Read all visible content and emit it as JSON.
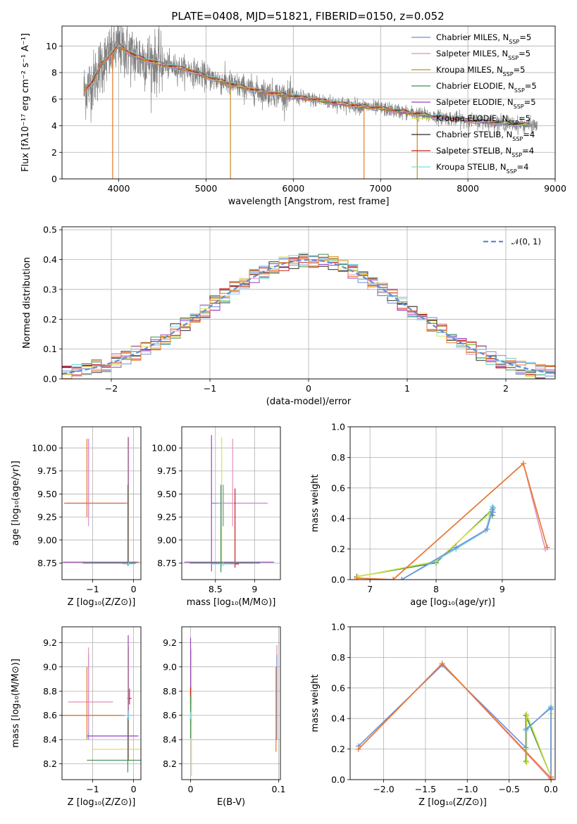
{
  "figure": {
    "title": "PLATE=0408, MJD=51821, FIBERID=0150, z=0.052"
  },
  "chart_data": [
    {
      "type": "line",
      "name": "spectrum",
      "xlabel": "wavelength [Angstrom, rest frame]",
      "ylabel": "Flux [fλ10⁻¹⁷ erg cm⁻² s⁻¹ A⁻¹]",
      "xlim": [
        3350,
        9000
      ],
      "ylim": [
        0,
        11.5
      ],
      "xticks": [
        4000,
        5000,
        6000,
        7000,
        8000,
        9000
      ],
      "yticks": [
        0,
        2,
        4,
        6,
        8,
        10
      ],
      "legend_position": "top-right",
      "legend": [
        {
          "label": "Chabrier MILES, N_SSP=5",
          "color": "#6f8fd8"
        },
        {
          "label": "Salpeter MILES, N_SSP=5",
          "color": "#e48fbf"
        },
        {
          "label": "Kroupa MILES, N_SSP=5",
          "color": "#c98a1e"
        },
        {
          "label": "Chabrier ELODIE, N_SSP=5",
          "color": "#3f8f56"
        },
        {
          "label": "Salpeter ELODIE, N_SSP=5",
          "color": "#9a3fc8"
        },
        {
          "label": "Kroupa ELODIE, N_SSP=5",
          "color": "#d7e24a"
        },
        {
          "label": "Chabrier STELIB, N_SSP=4",
          "color": "#2b2b2b"
        },
        {
          "label": "Salpeter STELIB, N_SSP=4",
          "color": "#c81e1e"
        },
        {
          "label": "Kroupa STELIB, N_SSP=4",
          "color": "#7fd6e0"
        }
      ],
      "data_color": "#808080",
      "model_color": "#e8782a",
      "continuum": {
        "x": [
          3600,
          3700,
          3800,
          4000,
          4200,
          4500,
          4800,
          5000,
          5300,
          5600,
          6000,
          6300,
          6600,
          7000,
          7300,
          7600,
          8000,
          8400,
          8800
        ],
        "y": [
          6.6,
          7.3,
          8.6,
          10.0,
          9.2,
          8.6,
          8.2,
          7.7,
          7.1,
          6.6,
          6.2,
          5.9,
          5.6,
          5.3,
          5.0,
          4.7,
          4.4,
          4.2,
          4.0
        ]
      },
      "dropouts": [
        3930,
        5280,
        6810,
        7420
      ]
    },
    {
      "type": "step",
      "name": "residual-histogram",
      "xlabel": "(data-model)/error",
      "ylabel": "Normed distribution",
      "xlim": [
        -2.5,
        2.5
      ],
      "ylim": [
        0,
        0.51
      ],
      "xticks": [
        -2,
        -1,
        0,
        1,
        2
      ],
      "yticks": [
        0.0,
        0.1,
        0.2,
        0.3,
        0.4,
        0.5
      ],
      "legend_position": "top-right",
      "legend": [
        {
          "label": "𝒩(0, 1)",
          "color": "#5b8fd8"
        }
      ],
      "bin_width": 0.1
    },
    {
      "type": "errorbar",
      "name": "age-vs-Z",
      "xlabel": "Z [log₁₀(Z/Z⊙)]",
      "ylabel": "age  [log₁₀(age/yr)]",
      "xlim": [
        -1.75,
        0.18
      ],
      "ylim": [
        8.57,
        10.23
      ],
      "xticks": [
        -1,
        0
      ],
      "yticks": [
        8.75,
        9.0,
        9.25,
        9.5,
        9.75,
        10.0
      ],
      "points": [
        {
          "x": -1.1,
          "y": 9.4,
          "xerr": [
            0.6,
            0.95
          ],
          "yerr": [
            0.15,
            0.7
          ],
          "color": "#6f8fd8"
        },
        {
          "x": -1.1,
          "y": 9.4,
          "xerr": [
            0.6,
            0.95
          ],
          "yerr": [
            0.25,
            0.7
          ],
          "color": "#e48fbf"
        },
        {
          "x": -1.14,
          "y": 9.4,
          "xerr": [
            0.55,
            0.95
          ],
          "yerr": [
            0.15,
            0.7
          ],
          "color": "#e8782a"
        },
        {
          "x": -0.12,
          "y": 8.76,
          "xerr": [
            1.6,
            0.3
          ],
          "yerr": [
            0.02,
            1.35
          ],
          "color": "#d7e24a"
        },
        {
          "x": -0.13,
          "y": 8.76,
          "xerr": [
            1.6,
            0.25
          ],
          "yerr": [
            0.02,
            1.36
          ],
          "color": "#9a3fc8"
        },
        {
          "x": -0.14,
          "y": 8.75,
          "xerr": [
            1.1,
            0.2
          ],
          "yerr": [
            0.03,
            0.85
          ],
          "color": "#3f8f56"
        },
        {
          "x": -0.12,
          "y": 8.74,
          "xerr": [
            0.15,
            0.15
          ],
          "yerr": [
            0.02,
            0.02
          ],
          "color": "#7fd6e0"
        }
      ]
    },
    {
      "type": "errorbar",
      "name": "age-vs-mass",
      "xlabel": "mass [log₁₀(M/M⊙)]",
      "ylabel": "",
      "xlim": [
        8.07,
        9.33
      ],
      "ylim": [
        8.57,
        10.23
      ],
      "xticks": [
        8.5,
        9.0
      ],
      "yticks": [
        8.75,
        9.0,
        9.25,
        9.5,
        9.75,
        10.0
      ],
      "points": [
        {
          "x": 8.6,
          "y": 9.4,
          "xerr": [
            0.15,
            0.55
          ],
          "yerr": [
            0.25,
            0.2
          ],
          "color": "#6f8fd8"
        },
        {
          "x": 8.72,
          "y": 9.4,
          "xerr": [
            0.2,
            0.45
          ],
          "yerr": [
            0.25,
            0.7
          ],
          "color": "#e48fbf"
        },
        {
          "x": 8.75,
          "y": 8.74,
          "xerr": [
            0.05,
            0.05
          ],
          "yerr": [
            0.04,
            0.82
          ],
          "color": "#c81e1e"
        },
        {
          "x": 8.58,
          "y": 8.76,
          "xerr": [
            0.45,
            0.65
          ],
          "yerr": [
            0.05,
            1.36
          ],
          "color": "#d7e24a"
        },
        {
          "x": 8.45,
          "y": 8.76,
          "xerr": [
            0.35,
            0.8
          ],
          "yerr": [
            0.1,
            1.38
          ],
          "color": "#9a3fc8"
        },
        {
          "x": 8.57,
          "y": 8.75,
          "xerr": [
            0.4,
            0.5
          ],
          "yerr": [
            0.1,
            0.85
          ],
          "color": "#3f8f56"
        },
        {
          "x": 8.6,
          "y": 8.74,
          "xerr": [
            0.15,
            0.15
          ],
          "yerr": [
            0.02,
            0.02
          ],
          "color": "#7fd6e0"
        }
      ]
    },
    {
      "type": "line",
      "name": "mass-weight-vs-age",
      "xlabel": "age  [log₁₀(age/yr)]",
      "ylabel": "mass weight",
      "xlim": [
        6.7,
        9.8
      ],
      "ylim": [
        0.0,
        1.0
      ],
      "xticks": [
        7,
        8,
        9
      ],
      "yticks": [
        0.0,
        0.2,
        0.4,
        0.6,
        0.8,
        1.0
      ],
      "series": [
        {
          "color": "#3f8f56",
          "x": [
            6.8,
            8.0,
            8.85,
            8.85
          ],
          "y": [
            0.02,
            0.11,
            0.46,
            0.42
          ]
        },
        {
          "color": "#d7e24a",
          "x": [
            6.82,
            8.0,
            8.8,
            8.85
          ],
          "y": [
            0.02,
            0.12,
            0.43,
            0.45
          ]
        },
        {
          "color": "#7fd6e0",
          "x": [
            7.48,
            8.3,
            8.75,
            8.85,
            8.85
          ],
          "y": [
            0.0,
            0.2,
            0.32,
            0.48,
            0.45
          ]
        },
        {
          "color": "#6f8fd8",
          "x": [
            7.48,
            8.3,
            8.77,
            8.86,
            8.86
          ],
          "y": [
            0.0,
            0.21,
            0.33,
            0.47,
            0.44
          ]
        },
        {
          "color": "#e48fbf",
          "x": [
            6.8,
            7.35,
            9.32,
            9.65
          ],
          "y": [
            0.01,
            0.0,
            0.76,
            0.2
          ]
        },
        {
          "color": "#e8782a",
          "x": [
            6.8,
            7.35,
            9.32,
            9.68
          ],
          "y": [
            0.01,
            0.0,
            0.76,
            0.21
          ]
        }
      ]
    },
    {
      "type": "errorbar",
      "name": "mass-vs-Z",
      "xlabel": "Z [log₁₀(Z/Z⊙)]",
      "ylabel": "mass [log₁₀(M/M⊙)]",
      "xlim": [
        -1.75,
        0.18
      ],
      "ylim": [
        8.07,
        9.33
      ],
      "xticks": [
        -1,
        0
      ],
      "yticks": [
        8.2,
        8.4,
        8.6,
        8.8,
        9.0,
        9.2
      ],
      "points": [
        {
          "x": -1.1,
          "y": 8.6,
          "xerr": [
            0.65,
            0.9
          ],
          "yerr": [
            0.2,
            0.5
          ],
          "color": "#6f8fd8"
        },
        {
          "x": -1.1,
          "y": 8.71,
          "xerr": [
            0.5,
            0.6
          ],
          "yerr": [
            0.25,
            0.45
          ],
          "color": "#e48fbf"
        },
        {
          "x": -1.14,
          "y": 8.6,
          "xerr": [
            0.6,
            0.85
          ],
          "yerr": [
            0.2,
            0.4
          ],
          "color": "#e8782a"
        },
        {
          "x": -0.1,
          "y": 8.74,
          "xerr": [
            0.05,
            0.05
          ],
          "yerr": [
            0.05,
            0.08
          ],
          "color": "#c81e1e"
        },
        {
          "x": -0.12,
          "y": 8.32,
          "xerr": [
            0.9,
            0.3
          ],
          "yerr": [
            0.1,
            0.85
          ],
          "color": "#d7e24a"
        },
        {
          "x": -0.13,
          "y": 8.43,
          "xerr": [
            1.0,
            0.25
          ],
          "yerr": [
            0.2,
            0.83
          ],
          "color": "#9a3fc8"
        },
        {
          "x": -0.14,
          "y": 8.23,
          "xerr": [
            1.0,
            0.35
          ],
          "yerr": [
            0.1,
            0.35
          ],
          "color": "#3f8f56"
        },
        {
          "x": -0.12,
          "y": 8.6,
          "xerr": [
            0.1,
            0.1
          ],
          "yerr": [
            0.04,
            0.04
          ],
          "color": "#7fd6e0"
        }
      ]
    },
    {
      "type": "errorbar",
      "name": "mass-vs-ebv",
      "xlabel": "E(B-V)",
      "ylabel": "",
      "xlim": [
        -0.01,
        0.102
      ],
      "ylim": [
        8.07,
        9.33
      ],
      "xticks": [
        0.0,
        0.1
      ],
      "yticks": [
        8.2,
        8.4,
        8.6,
        8.8,
        9.0,
        9.2
      ],
      "points": [
        {
          "x": 0.0,
          "y": 8.74,
          "xerr": [
            0,
            0
          ],
          "yerr": [
            0.2,
            0.5
          ],
          "color": "#9a3fc8"
        },
        {
          "x": 0.001,
          "y": 8.6,
          "xerr": [
            0,
            0
          ],
          "yerr": [
            0.5,
            0.55
          ],
          "color": "#d7e24a"
        },
        {
          "x": 0.0,
          "y": 8.75,
          "xerr": [
            0,
            0
          ],
          "yerr": [
            0.05,
            0.08
          ],
          "color": "#c81e1e"
        },
        {
          "x": 0.0,
          "y": 8.56,
          "xerr": [
            0,
            0
          ],
          "yerr": [
            0.15,
            0.2
          ],
          "color": "#3f8f56"
        },
        {
          "x": 0.0,
          "y": 8.6,
          "xerr": [
            0,
            0
          ],
          "yerr": [
            0.03,
            0.03
          ],
          "color": "#7fd6e0"
        },
        {
          "x": 0.098,
          "y": 8.76,
          "xerr": [
            0,
            0
          ],
          "yerr": [
            0.35,
            0.42
          ],
          "color": "#e48fbf"
        },
        {
          "x": 0.098,
          "y": 8.6,
          "xerr": [
            0,
            0
          ],
          "yerr": [
            0.2,
            0.5
          ],
          "color": "#6f8fd8"
        },
        {
          "x": 0.097,
          "y": 8.6,
          "xerr": [
            0,
            0
          ],
          "yerr": [
            0.3,
            0.4
          ],
          "color": "#e8782a"
        }
      ]
    },
    {
      "type": "line",
      "name": "mass-weight-vs-Z",
      "xlabel": "Z [log₁₀(Z/Z⊙)]",
      "ylabel": "mass weight",
      "xlim": [
        -2.4,
        0.05
      ],
      "ylim": [
        0.0,
        1.0
      ],
      "xticks": [
        -2.0,
        -1.5,
        -1.0,
        -0.5,
        0.0
      ],
      "yticks": [
        0.0,
        0.2,
        0.4,
        0.6,
        0.8,
        1.0
      ],
      "series": [
        {
          "color": "#3f8f56",
          "x": [
            -0.3,
            -0.3,
            0.0,
            0.0
          ],
          "y": [
            0.12,
            0.42,
            0.02,
            0.46
          ]
        },
        {
          "color": "#d7e24a",
          "x": [
            -0.29,
            -0.29,
            0.0,
            0.0
          ],
          "y": [
            0.11,
            0.43,
            0.02,
            0.43
          ]
        },
        {
          "color": "#7fd6e0",
          "x": [
            -0.3,
            -0.3,
            0.0,
            0.0
          ],
          "y": [
            0.2,
            0.32,
            0.48,
            0.0
          ]
        },
        {
          "color": "#6f8fd8",
          "x": [
            -2.3,
            -1.3,
            -0.3,
            -0.3,
            0.0,
            0.0
          ],
          "y": [
            0.22,
            0.75,
            0.21,
            0.33,
            0.47,
            0.0
          ]
        },
        {
          "color": "#e48fbf",
          "x": [
            -2.3,
            -1.3,
            0.0,
            0.0
          ],
          "y": [
            0.2,
            0.76,
            0.0,
            0.02
          ]
        },
        {
          "color": "#e8782a",
          "x": [
            -2.3,
            -1.3,
            0.0,
            0.0
          ],
          "y": [
            0.2,
            0.76,
            0.01,
            0.0
          ]
        }
      ]
    }
  ]
}
